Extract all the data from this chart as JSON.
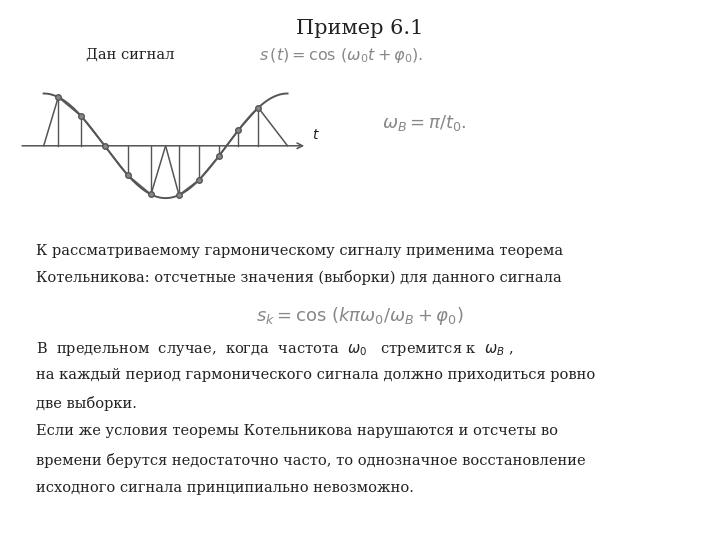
{
  "title": "Пример 6.1",
  "title_fontsize": 15,
  "background_color": "#ffffff",
  "text_color": "#222222",
  "signal_color": "#555555",
  "line1_text": "Дан сигнал",
  "formula1": "$s\\,(t) = \\cos\\,(\\omega_0 t + \\varphi_0).$",
  "formula2": "$\\omega_B = \\pi/t_0.$",
  "text_block1_line1": "К рассматриваемому гармоническому сигналу применима теорема",
  "text_block1_line2": "Котельникова: отсчетные значения (выборки) для данного сигнала",
  "formula3": "$s_k = \\cos\\,(k\\pi\\omega_0/\\omega_B + \\varphi_0)$",
  "text_block2_line1": "В  предельном  случае,  когда  частота  $\\omega_0$   стремится к  $\\omega_B$ ,",
  "text_block2_line2": "на каждый период гармонического сигнала должно приходиться ровно",
  "text_block2_line3": "две выборки.",
  "text_block2_line4": "Если же условия теоремы Котельникова нарушаются и отсчеты во",
  "text_block2_line5": "времени берутся недостаточно часто, то однозначное восстановление",
  "text_block2_line6": "исходного сигнала принципиально невозможно.",
  "wave_xlim": [
    -0.12,
    1.12
  ],
  "wave_ylim": [
    -1.6,
    1.6
  ]
}
